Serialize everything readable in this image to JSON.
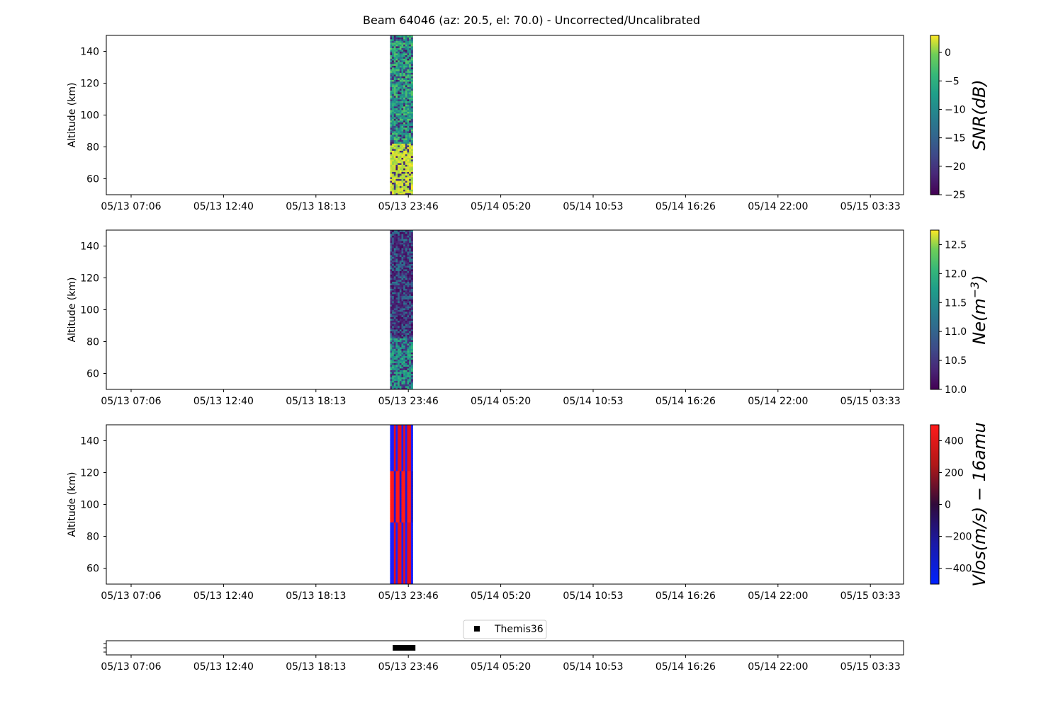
{
  "figure": {
    "title": "Beam 64046 (az: 20.5, el: 70.0) - Uncorrected/Uncalibrated"
  },
  "time_ticks": [
    "05/13 07:06",
    "05/13 12:40",
    "05/13 18:13",
    "05/13 23:46",
    "05/14 05:20",
    "05/14 10:53",
    "05/14 16:26",
    "05/14 22:00",
    "05/15 03:33"
  ],
  "chart_data": [
    {
      "type": "heatmap",
      "name": "snr",
      "ylabel": "Altitude (km)",
      "ylim": [
        50,
        150
      ],
      "yticks": [
        60,
        80,
        100,
        120,
        140
      ],
      "colorbar": {
        "label": "SNR(dB)",
        "range": [
          -25,
          3
        ],
        "ticks": [
          0,
          -5,
          -10,
          -15,
          -20,
          -25
        ],
        "colormap": "viridis"
      },
      "data_interval": {
        "start": "05/13 22:40",
        "end": "05/14 00:02"
      },
      "description_values": {
        "high_altitude_mean_db": -8,
        "low_altitude_mean_db": 2,
        "boundary_km": 82
      }
    },
    {
      "type": "heatmap",
      "name": "ne",
      "ylabel": "Altitude (km)",
      "ylim": [
        50,
        150
      ],
      "yticks": [
        60,
        80,
        100,
        120,
        140
      ],
      "colorbar": {
        "label": "Ne(m^-3)",
        "range": [
          10.0,
          12.75
        ],
        "ticks": [
          12.5,
          12.0,
          11.5,
          11.0,
          10.5,
          10.0
        ],
        "colormap": "viridis"
      },
      "data_interval": {
        "start": "05/13 22:40",
        "end": "05/14 00:02"
      },
      "description_values": {
        "high_altitude_mean": 10.4,
        "low_altitude_mean": 11.4,
        "boundary_km": 82
      }
    },
    {
      "type": "heatmap",
      "name": "vlos",
      "ylabel": "Altitude (km)",
      "ylim": [
        50,
        150
      ],
      "yticks": [
        60,
        80,
        100,
        120,
        140
      ],
      "colorbar": {
        "label": "Vlos(m/s) − 16amu",
        "range": [
          -500,
          500
        ],
        "ticks": [
          400,
          200,
          0,
          -200,
          -400
        ],
        "colormap": "blue-red"
      },
      "data_interval": {
        "start": "05/13 22:40",
        "end": "05/14 00:02"
      },
      "description_values": {
        "red_band_km": [
          89,
          121
        ]
      }
    },
    {
      "type": "scatter",
      "name": "themis",
      "legend": {
        "entries": [
          "Themis36"
        ],
        "marker": "square",
        "color": "#000000",
        "placement": "top-center"
      },
      "x_interval": {
        "start": "05/13 23:00",
        "end": "05/14 00:10"
      }
    }
  ]
}
